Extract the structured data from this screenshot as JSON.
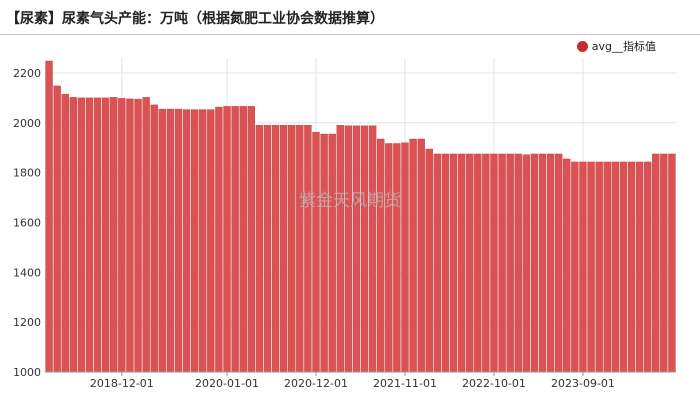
{
  "title": "【尿素】尿素气头产能：万吨（根据氮肥工业协会数据推算）",
  "watermark": "紫金天风期货",
  "colors": {
    "bar": "#d95355",
    "bar_edge": "#c9383b",
    "legend": "#c9282d",
    "grid": "#e3e3e3",
    "watermark": "#b8b8b8"
  },
  "chart_data": {
    "type": "bar",
    "legend": [
      {
        "name": "avg__指标值"
      }
    ],
    "legend_position": "top-right",
    "x_ticks": [
      "2018-12-01",
      "2020-01-01",
      "2020-12-01",
      "2021-11-01",
      "2022-10-01",
      "2023-09-01"
    ],
    "y_ticks": [
      1000,
      1200,
      1400,
      1600,
      1800,
      2000,
      2200
    ],
    "ylim": [
      1000,
      2260
    ],
    "grid": true,
    "series": [
      {
        "name": "avg__指标值",
        "values": [
          2248,
          2148,
          2115,
          2102,
          2100,
          2100,
          2100,
          2100,
          2102,
          2098,
          2096,
          2095,
          2102,
          2072,
          2055,
          2055,
          2055,
          2053,
          2053,
          2053,
          2053,
          2063,
          2066,
          2066,
          2066,
          2066,
          1990,
          1990,
          1990,
          1990,
          1990,
          1990,
          1990,
          1962,
          1955,
          1955,
          1990,
          1988,
          1988,
          1988,
          1988,
          1935,
          1917,
          1917,
          1920,
          1935,
          1935,
          1895,
          1875,
          1875,
          1875,
          1875,
          1875,
          1875,
          1875,
          1875,
          1875,
          1875,
          1875,
          1872,
          1875,
          1875,
          1875,
          1875,
          1855,
          1843,
          1843,
          1843,
          1843,
          1843,
          1843,
          1843,
          1843,
          1843,
          1843,
          1875,
          1875,
          1875
        ]
      }
    ]
  }
}
